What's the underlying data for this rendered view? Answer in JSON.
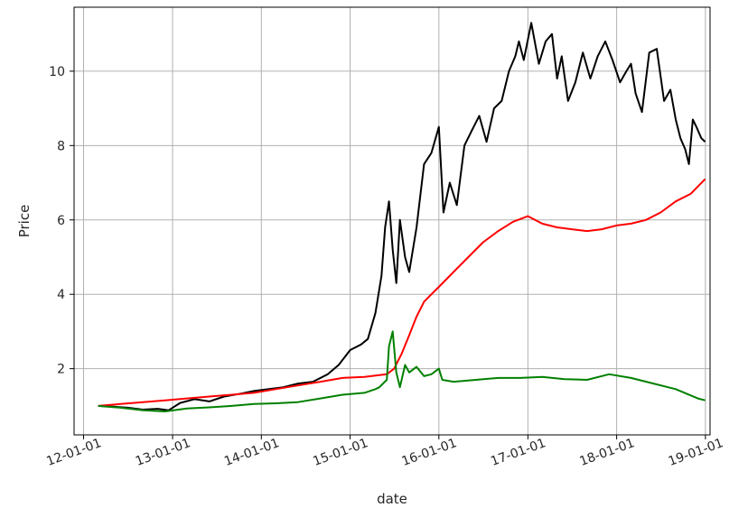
{
  "chart_data": {
    "type": "line",
    "title": "",
    "xlabel": "date",
    "ylabel": "Price",
    "x_tick_labels": [
      "12-01-01",
      "13-01-01",
      "14-01-01",
      "15-01-01",
      "16-01-01",
      "17-01-01",
      "18-01-01",
      "19-01-01"
    ],
    "y_tick_labels": [
      "2",
      "4",
      "6",
      "8",
      "10"
    ],
    "y_ticks": [
      2,
      4,
      6,
      8,
      10
    ],
    "xlim": [
      "2011-11-23",
      "2019-01-20"
    ],
    "ylim": [
      0.22,
      11.72
    ],
    "grid": true,
    "series": [
      {
        "color": "#000000",
        "x": [
          "2012-03-01",
          "2012-05-01",
          "2012-07-01",
          "2012-09-01",
          "2012-11-01",
          "2012-12-15",
          "2013-02-01",
          "2013-04-01",
          "2013-06-01",
          "2013-08-01",
          "2013-10-01",
          "2013-12-01",
          "2014-02-01",
          "2014-04-01",
          "2014-06-01",
          "2014-08-01",
          "2014-10-01",
          "2014-11-15",
          "2015-01-01",
          "2015-02-15",
          "2015-03-15",
          "2015-04-15",
          "2015-05-10",
          "2015-05-25",
          "2015-06-10",
          "2015-06-25",
          "2015-07-10",
          "2015-07-25",
          "2015-08-15",
          "2015-09-01",
          "2015-10-01",
          "2015-11-01",
          "2015-12-01",
          "2016-01-01",
          "2016-01-20",
          "2016-02-15",
          "2016-03-15",
          "2016-04-15",
          "2016-05-15",
          "2016-06-15",
          "2016-07-15",
          "2016-08-15",
          "2016-09-15",
          "2016-10-15",
          "2016-11-10",
          "2016-11-25",
          "2016-12-15",
          "2017-01-15",
          "2017-02-15",
          "2017-03-15",
          "2017-04-10",
          "2017-05-01",
          "2017-05-20",
          "2017-06-15",
          "2017-07-15",
          "2017-08-15",
          "2017-09-15",
          "2017-10-15",
          "2017-11-15",
          "2017-12-15",
          "2018-01-15",
          "2018-02-10",
          "2018-03-01",
          "2018-03-20",
          "2018-04-15",
          "2018-05-15",
          "2018-06-15",
          "2018-07-15",
          "2018-08-10",
          "2018-09-01",
          "2018-09-20",
          "2018-10-10",
          "2018-10-25",
          "2018-11-10",
          "2018-11-25",
          "2018-12-15",
          "2018-12-31"
        ],
        "y": [
          1.0,
          0.98,
          0.95,
          0.9,
          0.92,
          0.88,
          1.08,
          1.18,
          1.12,
          1.25,
          1.32,
          1.4,
          1.45,
          1.5,
          1.6,
          1.65,
          1.85,
          2.1,
          2.5,
          2.65,
          2.8,
          3.5,
          4.5,
          5.8,
          6.5,
          5.2,
          4.3,
          6.0,
          5.0,
          4.6,
          5.8,
          7.5,
          7.8,
          8.5,
          6.2,
          7.0,
          6.4,
          8.0,
          8.4,
          8.8,
          8.1,
          9.0,
          9.2,
          10.0,
          10.4,
          10.8,
          10.3,
          11.3,
          10.2,
          10.8,
          11.0,
          9.8,
          10.4,
          9.2,
          9.7,
          10.5,
          9.8,
          10.4,
          10.8,
          10.3,
          9.7,
          10.0,
          10.2,
          9.4,
          8.9,
          10.5,
          10.6,
          9.2,
          9.5,
          8.7,
          8.2,
          7.9,
          7.5,
          8.7,
          8.5,
          8.2,
          8.1
        ]
      },
      {
        "color": "#ff0000",
        "x": [
          "2012-03-01",
          "2012-06-01",
          "2012-09-01",
          "2012-12-01",
          "2013-03-01",
          "2013-06-01",
          "2013-09-01",
          "2013-12-01",
          "2014-03-01",
          "2014-06-01",
          "2014-09-01",
          "2014-12-01",
          "2015-03-01",
          "2015-06-01",
          "2015-07-01",
          "2015-08-01",
          "2015-09-01",
          "2015-10-01",
          "2015-11-01",
          "2015-12-01",
          "2016-01-01",
          "2016-03-01",
          "2016-05-01",
          "2016-07-01",
          "2016-09-01",
          "2016-11-01",
          "2017-01-01",
          "2017-03-01",
          "2017-05-01",
          "2017-07-01",
          "2017-09-01",
          "2017-11-01",
          "2018-01-01",
          "2018-03-01",
          "2018-05-01",
          "2018-07-01",
          "2018-09-01",
          "2018-11-01",
          "2018-12-31"
        ],
        "y": [
          1.0,
          1.05,
          1.1,
          1.15,
          1.2,
          1.25,
          1.3,
          1.35,
          1.45,
          1.55,
          1.65,
          1.75,
          1.78,
          1.85,
          2.0,
          2.4,
          2.9,
          3.4,
          3.8,
          4.0,
          4.2,
          4.6,
          5.0,
          5.4,
          5.7,
          5.95,
          6.1,
          5.9,
          5.8,
          5.75,
          5.7,
          5.75,
          5.85,
          5.9,
          6.0,
          6.2,
          6.5,
          6.7,
          7.1
        ]
      },
      {
        "color": "#008000",
        "x": [
          "2012-03-01",
          "2012-06-01",
          "2012-09-01",
          "2012-12-01",
          "2013-03-01",
          "2013-06-01",
          "2013-09-01",
          "2013-12-01",
          "2014-03-01",
          "2014-06-01",
          "2014-09-01",
          "2014-12-01",
          "2015-03-01",
          "2015-04-15",
          "2015-05-01",
          "2015-06-01",
          "2015-06-10",
          "2015-06-25",
          "2015-07-10",
          "2015-07-25",
          "2015-08-15",
          "2015-09-01",
          "2015-10-01",
          "2015-11-01",
          "2015-12-01",
          "2016-01-01",
          "2016-01-15",
          "2016-03-01",
          "2016-06-01",
          "2016-09-01",
          "2016-12-01",
          "2017-03-01",
          "2017-06-01",
          "2017-09-01",
          "2017-12-01",
          "2018-03-01",
          "2018-06-01",
          "2018-09-01",
          "2018-12-01",
          "2018-12-31"
        ],
        "y": [
          1.0,
          0.95,
          0.88,
          0.85,
          0.93,
          0.96,
          1.0,
          1.05,
          1.07,
          1.1,
          1.2,
          1.3,
          1.35,
          1.45,
          1.5,
          1.7,
          2.6,
          3.0,
          1.9,
          1.5,
          2.1,
          1.9,
          2.05,
          1.8,
          1.85,
          2.0,
          1.7,
          1.65,
          1.7,
          1.75,
          1.75,
          1.78,
          1.72,
          1.7,
          1.85,
          1.75,
          1.6,
          1.45,
          1.2,
          1.15
        ]
      }
    ]
  }
}
